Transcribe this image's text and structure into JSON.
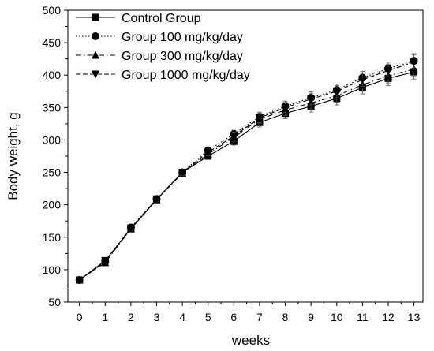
{
  "chart_data": {
    "type": "line",
    "title": "",
    "xlabel": "weeks",
    "ylabel": "Body weight, g",
    "x": [
      0,
      1,
      2,
      3,
      4,
      5,
      6,
      7,
      8,
      9,
      10,
      11,
      12,
      13
    ],
    "xlim": [
      -0.45,
      13.35
    ],
    "ylim": [
      50,
      500
    ],
    "xticks": [
      0,
      1,
      2,
      3,
      4,
      5,
      6,
      7,
      8,
      9,
      10,
      11,
      12,
      13
    ],
    "yticks": [
      50,
      100,
      150,
      200,
      250,
      300,
      350,
      400,
      450,
      500
    ],
    "grid": false,
    "legend_position": "top-left",
    "series": [
      {
        "name": "Control Group",
        "marker": "square",
        "dash": "solid",
        "values": [
          84,
          114,
          163,
          208,
          250,
          275,
          298,
          327,
          341,
          352,
          364,
          381,
          395,
          405
        ],
        "errors": [
          3,
          3,
          4,
          4,
          5,
          5,
          6,
          7,
          8,
          9,
          10,
          10,
          11,
          11
        ]
      },
      {
        "name": "Group 100 mg/kg/day",
        "marker": "circle",
        "dash": "dotted",
        "values": [
          84,
          113,
          165,
          209,
          250,
          284,
          309,
          336,
          352,
          365,
          377,
          396,
          410,
          422
        ],
        "errors": [
          3,
          3,
          4,
          4,
          5,
          5,
          6,
          7,
          8,
          9,
          9,
          10,
          10,
          11
        ]
      },
      {
        "name": "Group 300 mg/kg/day",
        "marker": "triangle-up",
        "dash": "dashdot",
        "values": [
          84,
          111,
          163,
          208,
          249,
          278,
          304,
          332,
          346,
          357,
          368,
          385,
          399,
          409
        ],
        "errors": [
          3,
          3,
          4,
          4,
          5,
          5,
          6,
          7,
          8,
          9,
          10,
          10,
          11,
          11
        ]
      },
      {
        "name": "Group 1000 mg/kg/day",
        "marker": "triangle-down",
        "dash": "dashed",
        "values": [
          84,
          112,
          164,
          209,
          250,
          281,
          306,
          334,
          350,
          363,
          375,
          393,
          407,
          420
        ],
        "errors": [
          3,
          3,
          4,
          4,
          5,
          5,
          6,
          7,
          8,
          9,
          9,
          10,
          10,
          11
        ]
      }
    ]
  }
}
